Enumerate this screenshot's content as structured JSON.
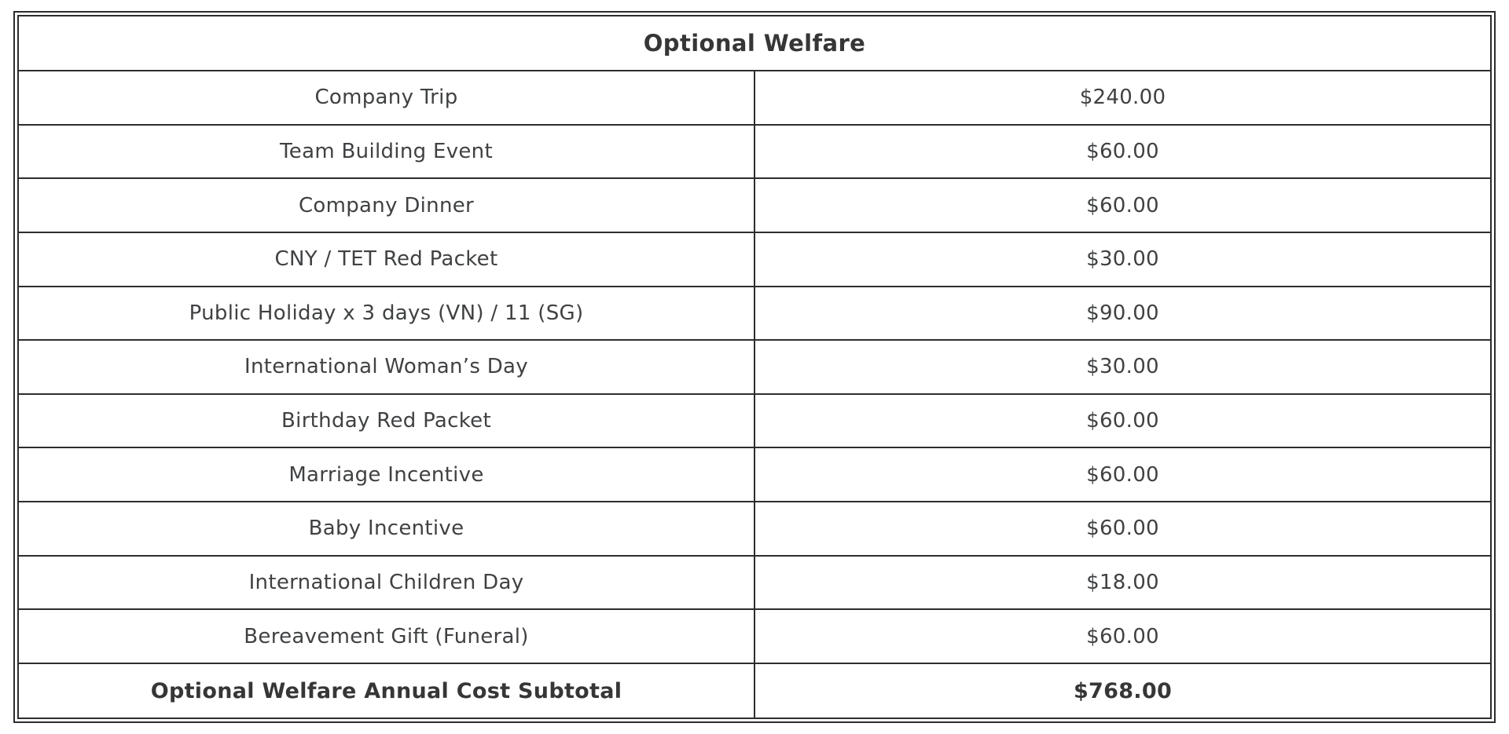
{
  "table": {
    "title": "Optional Welfare",
    "rows": [
      {
        "label": "Company Trip",
        "value": "$240.00"
      },
      {
        "label": "Team Building Event",
        "value": "$60.00"
      },
      {
        "label": "Company Dinner",
        "value": "$60.00"
      },
      {
        "label": "CNY / TET Red Packet",
        "value": "$30.00"
      },
      {
        "label": "Public Holiday x 3 days (VN) / 11 (SG)",
        "value": "$90.00"
      },
      {
        "label": "International Woman’s Day",
        "value": "$30.00"
      },
      {
        "label": "Birthday Red Packet",
        "value": "$60.00"
      },
      {
        "label": "Marriage Incentive",
        "value": "$60.00"
      },
      {
        "label": "Baby Incentive",
        "value": "$60.00"
      },
      {
        "label": "International Children Day",
        "value": "$18.00"
      },
      {
        "label": "Bereavement Gift (Funeral)",
        "value": "$60.00"
      }
    ],
    "subtotal": {
      "label": "Optional Welfare Annual Cost Subtotal",
      "value": "$768.00"
    }
  },
  "colors": {
    "border": "#2d2d2d",
    "title_text": "#363636",
    "body_text": "#3f4143",
    "background": "#ffffff"
  }
}
